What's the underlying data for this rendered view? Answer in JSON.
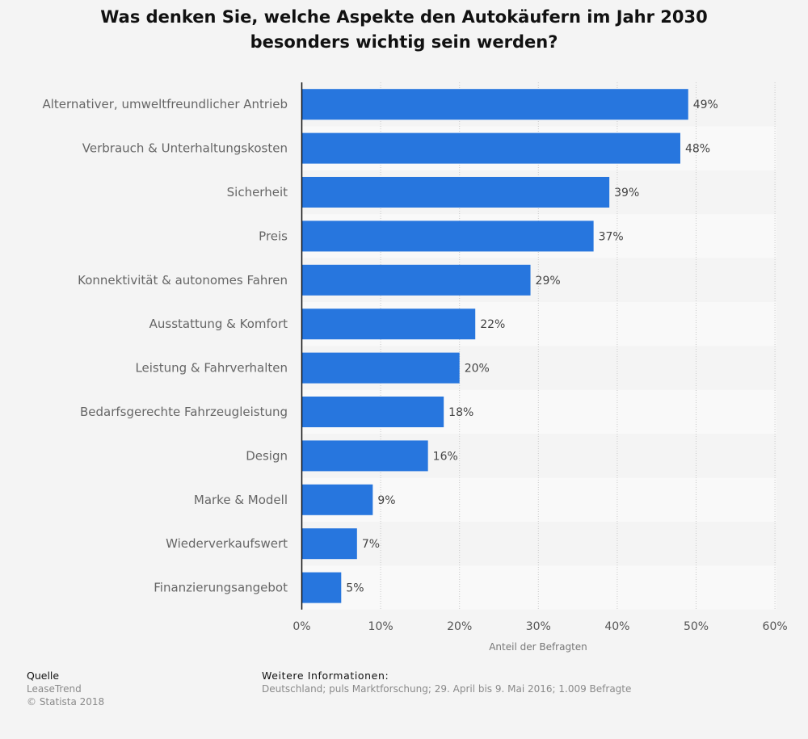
{
  "chart_data": {
    "type": "bar",
    "orientation": "horizontal",
    "title": "Was denken Sie, welche Aspekte den Autokäufern im Jahr 2030 besonders wichtig sein werden?",
    "categories": [
      "Alternativer, umweltfreundlicher Antrieb",
      "Verbrauch & Unterhaltungskosten",
      "Sicherheit",
      "Preis",
      "Konnektivität & autonomes Fahren",
      "Ausstattung & Komfort",
      "Leistung & Fahrverhalten",
      "Bedarfsgerechte Fahrzeugleistung",
      "Design",
      "Marke & Modell",
      "Wiederverkaufswert",
      "Finanzierungsangebot"
    ],
    "values": [
      49,
      48,
      39,
      37,
      29,
      22,
      20,
      18,
      16,
      9,
      7,
      5
    ],
    "value_labels": [
      "49%",
      "48%",
      "39%",
      "37%",
      "29%",
      "22%",
      "20%",
      "18%",
      "16%",
      "9%",
      "7%",
      "5%"
    ],
    "xlabel": "Anteil der Befragten",
    "ylabel": "",
    "xlim": [
      0,
      60
    ],
    "xticks": [
      0,
      10,
      20,
      30,
      40,
      50,
      60
    ],
    "xtick_labels": [
      "0%",
      "10%",
      "20%",
      "30%",
      "40%",
      "50%",
      "60%"
    ],
    "grid": true,
    "bar_color": "#2776de"
  },
  "title_line1": "Was denken Sie, welche Aspekte den Autokäufern im Jahr 2030",
  "title_line2": "besonders wichtig sein werden?",
  "footer": {
    "source_heading": "Quelle",
    "source_name": "LeaseTrend",
    "copyright": "© Statista 2018",
    "info_heading": "Weitere Informationen:",
    "info_text": "Deutschland; puls Marktforschung; 29. April bis 9. Mai 2016; 1.009 Befragte"
  }
}
